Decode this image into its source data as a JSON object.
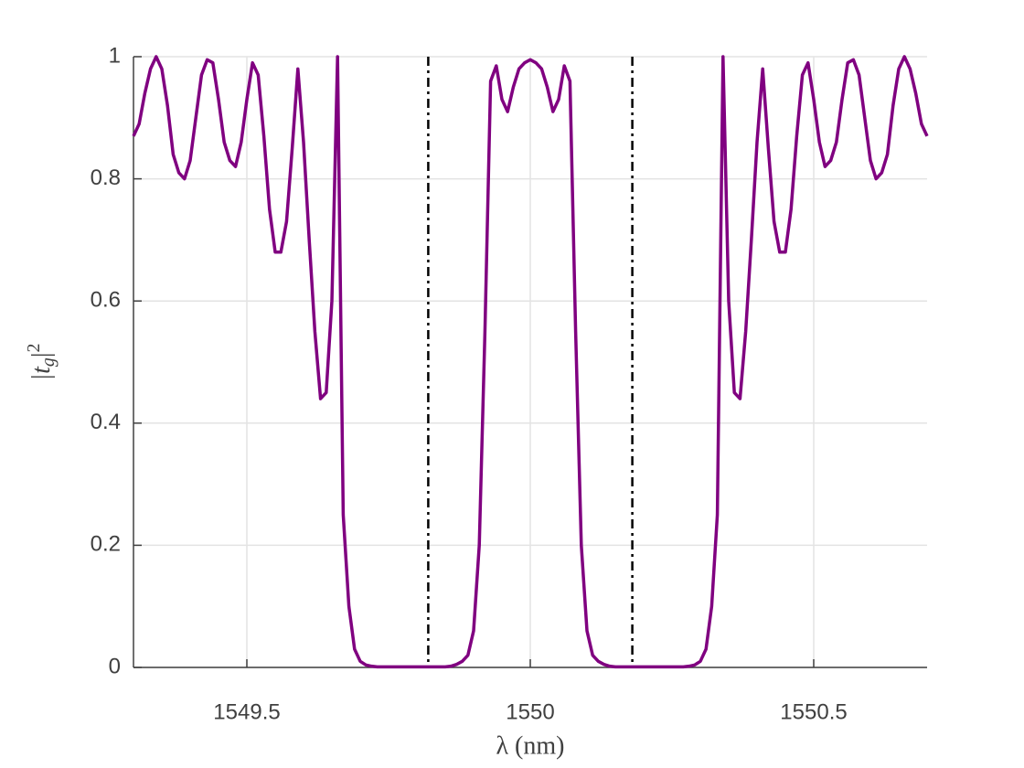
{
  "chart_data": {
    "type": "line",
    "xlabel": "λ (nm)",
    "ylabel": {
      "text": "|t",
      "sub": "g",
      "close": "|",
      "sup": "2"
    },
    "x": [
      1549.3,
      1549.31,
      1549.32,
      1549.33,
      1549.34,
      1549.35,
      1549.36,
      1549.37,
      1549.38,
      1549.39,
      1549.4,
      1549.41,
      1549.42,
      1549.43,
      1549.44,
      1549.45,
      1549.46,
      1549.47,
      1549.48,
      1549.49,
      1549.5,
      1549.51,
      1549.52,
      1549.53,
      1549.54,
      1549.55,
      1549.56,
      1549.57,
      1549.58,
      1549.59,
      1549.6,
      1549.61,
      1549.62,
      1549.63,
      1549.64,
      1549.65,
      1549.66,
      1549.67,
      1549.68,
      1549.69,
      1549.7,
      1549.71,
      1549.72,
      1549.73,
      1549.74,
      1549.75,
      1549.76,
      1549.77,
      1549.78,
      1549.79,
      1549.8,
      1549.81,
      1549.82,
      1549.83,
      1549.84,
      1549.85,
      1549.86,
      1549.87,
      1549.88,
      1549.89,
      1549.9,
      1549.91,
      1549.92,
      1549.93,
      1549.94,
      1549.95,
      1549.96,
      1549.97,
      1549.98,
      1549.99,
      1550,
      1550.01,
      1550.02,
      1550.03,
      1550.04,
      1550.05,
      1550.06,
      1550.07,
      1550.08,
      1550.09,
      1550.1,
      1550.11,
      1550.12,
      1550.13,
      1550.14,
      1550.15,
      1550.16,
      1550.17,
      1550.18,
      1550.19,
      1550.2,
      1550.21,
      1550.22,
      1550.23,
      1550.24,
      1550.25,
      1550.26,
      1550.27,
      1550.28,
      1550.29,
      1550.3,
      1550.31,
      1550.32,
      1550.33,
      1550.34,
      1550.35,
      1550.36,
      1550.37,
      1550.38,
      1550.39,
      1550.4,
      1550.41,
      1550.42,
      1550.43,
      1550.44,
      1550.45,
      1550.46,
      1550.47,
      1550.48,
      1550.49,
      1550.5,
      1550.51,
      1550.52,
      1550.53,
      1550.54,
      1550.55,
      1550.56,
      1550.57,
      1550.58,
      1550.59,
      1550.6,
      1550.61,
      1550.62,
      1550.63,
      1550.64,
      1550.65,
      1550.66,
      1550.67,
      1550.68,
      1550.69,
      1550.7
    ],
    "series": [
      {
        "color": "#800080",
        "values": [
          0.87,
          0.89,
          0.94,
          0.98,
          1.0,
          0.98,
          0.92,
          0.84,
          0.81,
          0.8,
          0.83,
          0.9,
          0.97,
          0.995,
          0.99,
          0.93,
          0.86,
          0.83,
          0.82,
          0.86,
          0.93,
          0.99,
          0.97,
          0.87,
          0.75,
          0.68,
          0.68,
          0.73,
          0.85,
          0.98,
          0.86,
          0.7,
          0.55,
          0.44,
          0.45,
          0.6,
          1.0,
          0.25,
          0.1,
          0.03,
          0.01,
          0.004,
          0.002,
          0.001,
          0.001,
          0.001,
          0.001,
          0.001,
          0.001,
          0.001,
          0.001,
          0.001,
          0.001,
          0.001,
          0.001,
          0.001,
          0.002,
          0.005,
          0.01,
          0.02,
          0.06,
          0.2,
          0.55,
          0.96,
          0.985,
          0.93,
          0.91,
          0.95,
          0.98,
          0.99,
          0.995,
          0.99,
          0.98,
          0.95,
          0.91,
          0.93,
          0.985,
          0.96,
          0.55,
          0.2,
          0.06,
          0.02,
          0.01,
          0.005,
          0.002,
          0.001,
          0.001,
          0.001,
          0.001,
          0.001,
          0.001,
          0.001,
          0.001,
          0.001,
          0.001,
          0.001,
          0.001,
          0.001,
          0.002,
          0.004,
          0.01,
          0.03,
          0.1,
          0.25,
          1.0,
          0.6,
          0.45,
          0.44,
          0.55,
          0.7,
          0.86,
          0.98,
          0.85,
          0.73,
          0.68,
          0.68,
          0.75,
          0.87,
          0.97,
          0.99,
          0.93,
          0.86,
          0.82,
          0.83,
          0.86,
          0.93,
          0.99,
          0.995,
          0.97,
          0.9,
          0.83,
          0.8,
          0.81,
          0.84,
          0.92,
          0.98,
          1.0,
          0.98,
          0.94,
          0.89,
          0.87
        ]
      }
    ],
    "vlines": {
      "x": [
        1549.82,
        1550.18
      ],
      "color": "#000000",
      "style": "dash-dot"
    },
    "xlim": [
      1549.3,
      1550.7
    ],
    "xticks": [
      1549.5,
      1550,
      1550.5
    ],
    "ylim": [
      0,
      1
    ],
    "yticks": [
      0,
      0.2,
      0.4,
      0.6,
      0.8,
      1
    ],
    "grid": true
  }
}
